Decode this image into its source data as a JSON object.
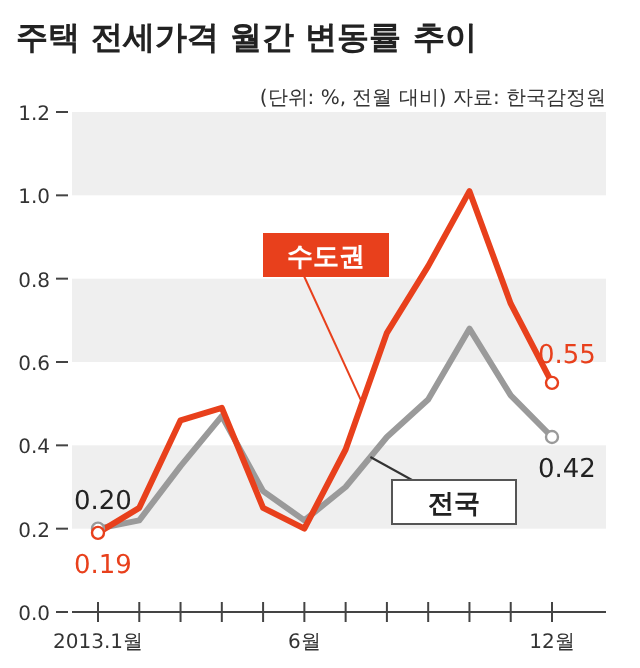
{
  "chart_data": {
    "type": "line",
    "title": "주택 전세가격 월간 변동률 추이",
    "subtitle": "(단위: %, 전월 대비) 자료: 한국감정원",
    "categories": [
      "2013.1월",
      null,
      null,
      null,
      null,
      "6월",
      null,
      null,
      null,
      null,
      null,
      "12월"
    ],
    "series": [
      {
        "name": "전국",
        "color": "#9a9a9a",
        "values": [
          0.2,
          0.22,
          0.35,
          0.47,
          0.29,
          0.22,
          0.3,
          0.42,
          0.51,
          0.68,
          0.52,
          0.42
        ],
        "value_labels": [
          "0.20",
          null,
          null,
          null,
          null,
          null,
          null,
          null,
          null,
          null,
          null,
          "0.42"
        ]
      },
      {
        "name": "수도권",
        "color": "#e8401c",
        "values": [
          0.19,
          0.25,
          0.46,
          0.49,
          0.25,
          0.2,
          0.39,
          0.67,
          0.83,
          1.01,
          0.74,
          0.55
        ],
        "value_labels": [
          "0.19",
          null,
          null,
          null,
          null,
          null,
          null,
          null,
          null,
          null,
          null,
          "0.55"
        ]
      }
    ],
    "ylim": [
      0,
      1.2
    ],
    "yticks": [
      {
        "value": 0,
        "label": "0.0"
      },
      {
        "value": 0.2,
        "label": "0.2"
      },
      {
        "value": 0.4,
        "label": "0.4"
      },
      {
        "value": 0.6,
        "label": "0.6"
      },
      {
        "value": 0.8,
        "label": "0.8"
      },
      {
        "value": 1,
        "label": "1.0"
      },
      {
        "value": 1.2,
        "label": "1.2"
      }
    ],
    "bands": [
      {
        "axis": "y",
        "from": 0.2,
        "to": 0.4,
        "color": "#efefef"
      },
      {
        "axis": "y",
        "from": 0.6,
        "to": 0.8,
        "color": "#efefef"
      },
      {
        "axis": "y",
        "from": 1.0,
        "to": 1.2,
        "color": "#efefef"
      }
    ],
    "grid": false,
    "line_style": "solid"
  }
}
